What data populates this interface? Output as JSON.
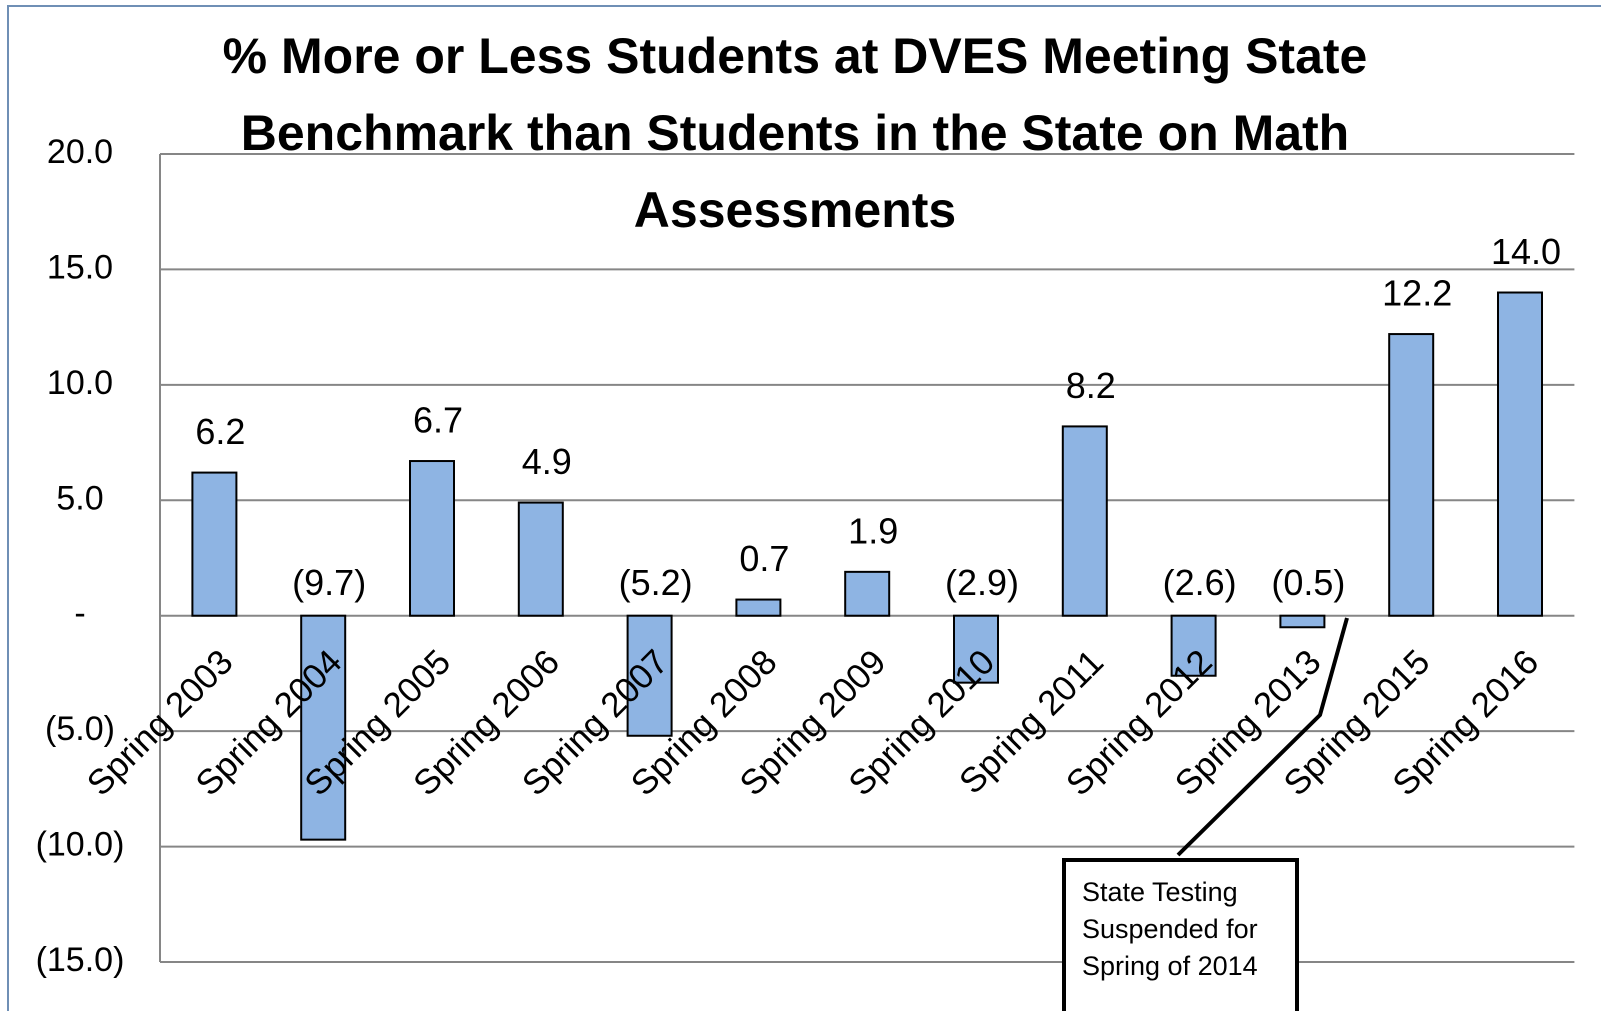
{
  "chart_data": {
    "type": "bar",
    "title": "% More or Less Students at DVES Meeting State Benchmark than Students in the State on Math Assessments",
    "categories": [
      "Spring 2003",
      "Spring 2004",
      "Spring 2005",
      "Spring 2006",
      "Spring 2007",
      "Spring 2008",
      "Spring 2009",
      "Spring 2010",
      "Spring 2011",
      "Spring 2012",
      "Spring 2013",
      "Spring 2015",
      "Spring 2016"
    ],
    "values": [
      6.2,
      -9.7,
      6.7,
      4.9,
      -5.2,
      0.7,
      1.9,
      -2.9,
      8.2,
      -2.6,
      -0.5,
      12.2,
      14.0
    ],
    "value_labels": [
      "6.2",
      "(9.7)",
      "6.7",
      "4.9",
      "(5.2)",
      "0.7",
      "1.9",
      "(2.9)",
      "8.2",
      "(2.6)",
      "(0.5)",
      "12.2",
      "14.0"
    ],
    "color": "#8eb4e3",
    "ylim": [
      -15,
      20
    ],
    "yticks": [
      {
        "value": 20,
        "label": "20.0"
      },
      {
        "value": 15,
        "label": "15.0"
      },
      {
        "value": 10,
        "label": "10.0"
      },
      {
        "value": 5,
        "label": "5.0"
      },
      {
        "value": 0,
        "label": "-"
      },
      {
        "value": -5,
        "label": "(5.0)"
      },
      {
        "value": -10,
        "label": "(10.0)"
      },
      {
        "value": -15,
        "label": "(15.0)"
      }
    ],
    "grid": true,
    "annotation": "State Testing Suspended for Spring of 2014"
  }
}
